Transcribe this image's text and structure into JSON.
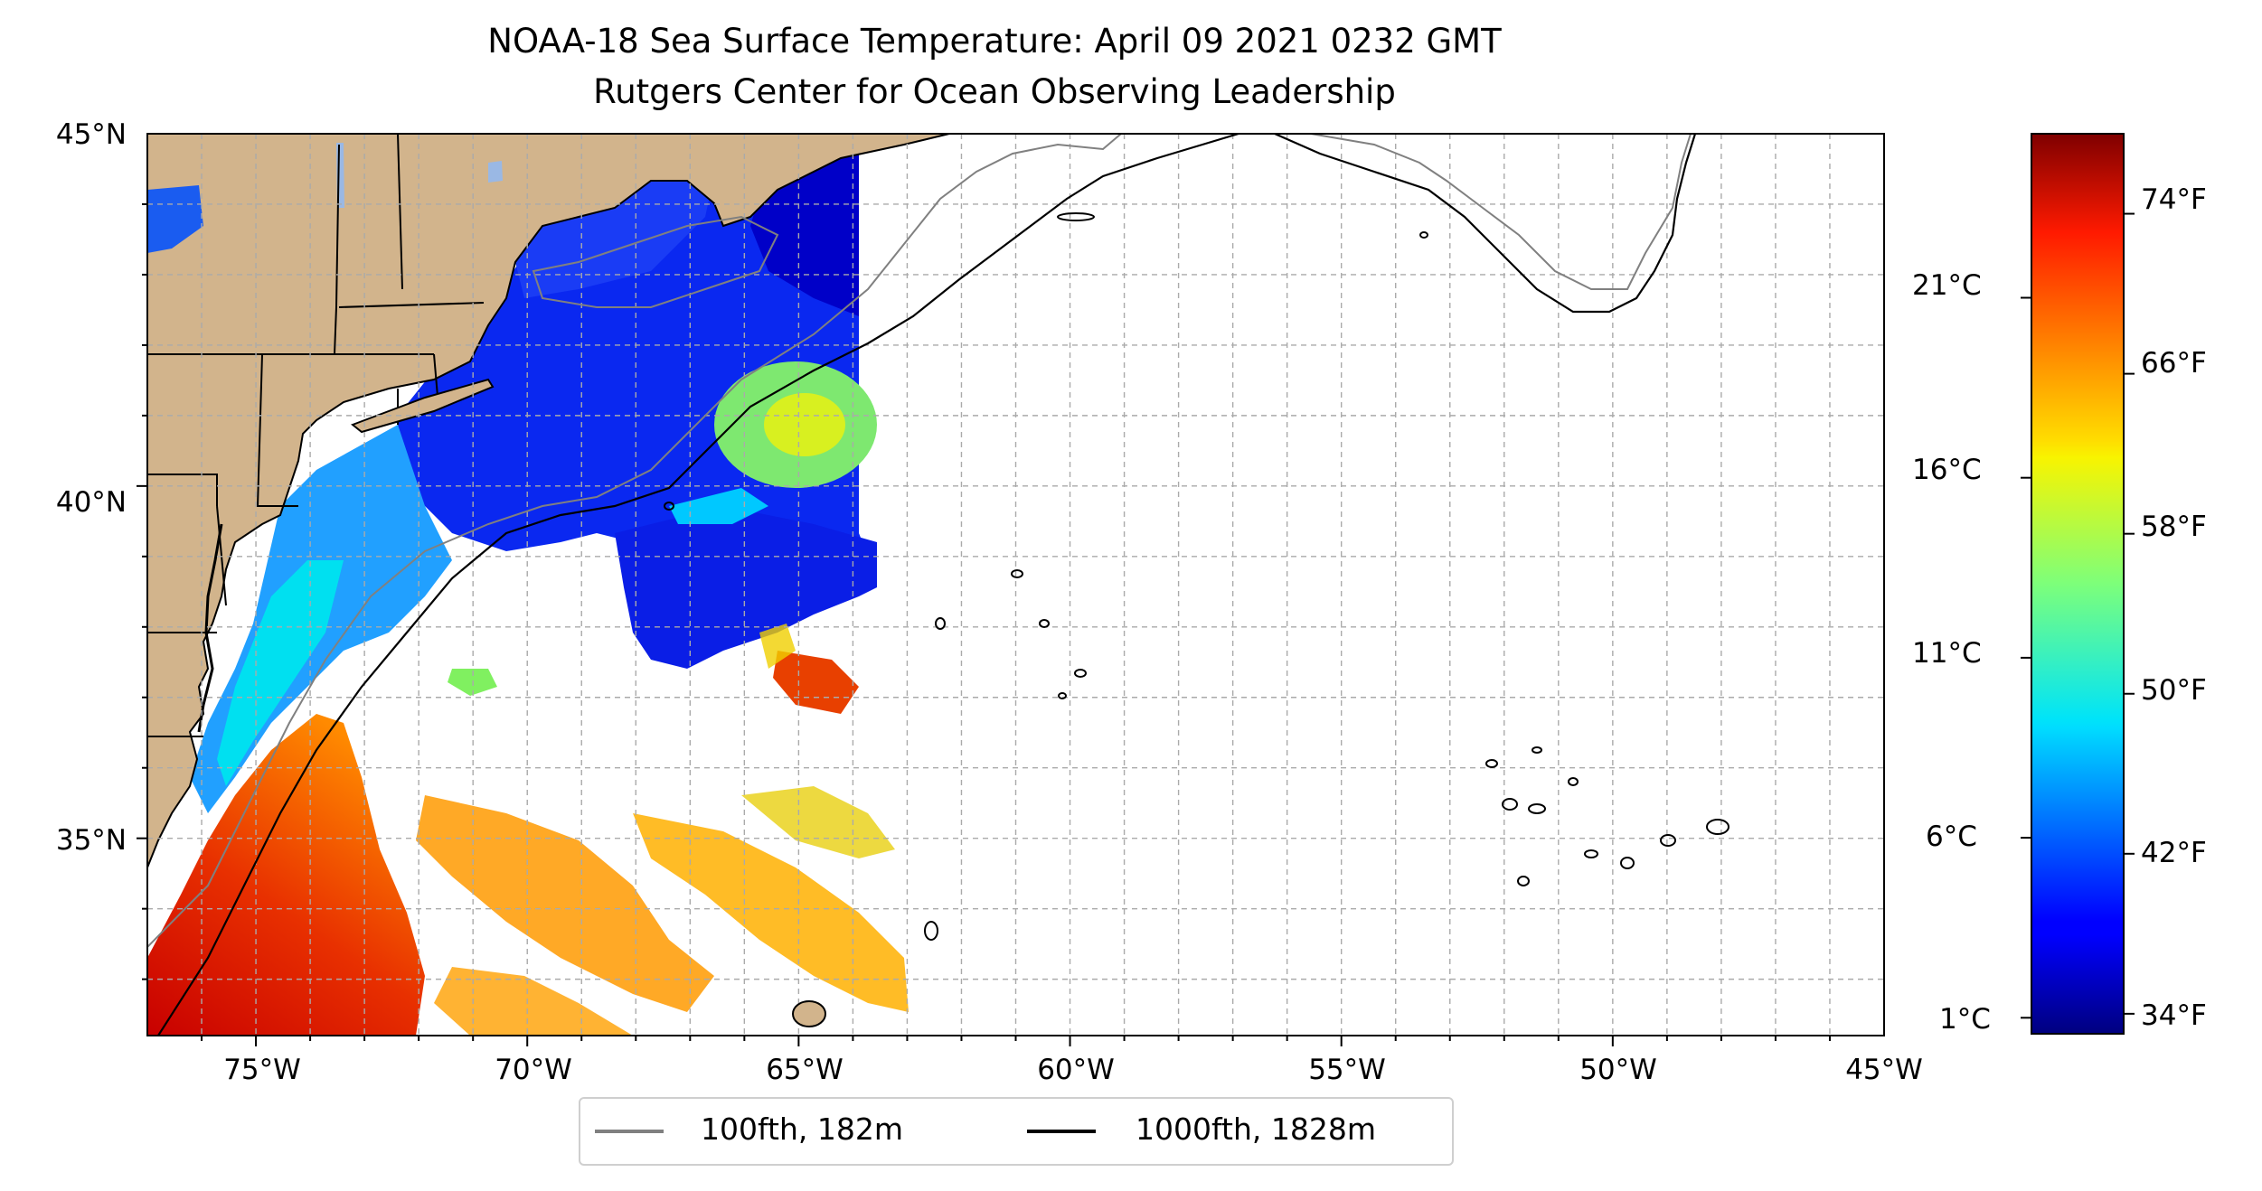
{
  "title": "NOAA-18 Sea Surface Temperature: April 09 2021 0232 GMT",
  "subtitle": "Rutgers Center for Ocean Observing Leadership",
  "map": {
    "lon_labels": [
      "75°W",
      "70°W",
      "65°W",
      "60°W",
      "55°W",
      "50°W",
      "45°W"
    ],
    "lat_labels": [
      "45°N",
      "40°N",
      "35°N"
    ],
    "lon_range": [
      -77,
      -45
    ],
    "lat_range": [
      32.2,
      45
    ],
    "land_color": "#d2b48c",
    "lake_color": "#9ab8e4",
    "grid": true
  },
  "colorbar": {
    "colormap": "jet",
    "celsius_labels": [
      "21°C",
      "16°C",
      "11°C",
      "6°C",
      "1°C"
    ],
    "fahrenheit_labels": [
      "74°F",
      "66°F",
      "58°F",
      "50°F",
      "42°F",
      "34°F"
    ],
    "fahrenheit_range": [
      33,
      78
    ]
  },
  "legend": {
    "items": [
      {
        "label": "100fth, 182m",
        "color": "#808080"
      },
      {
        "label": "1000fth, 1828m",
        "color": "#000000"
      }
    ]
  }
}
